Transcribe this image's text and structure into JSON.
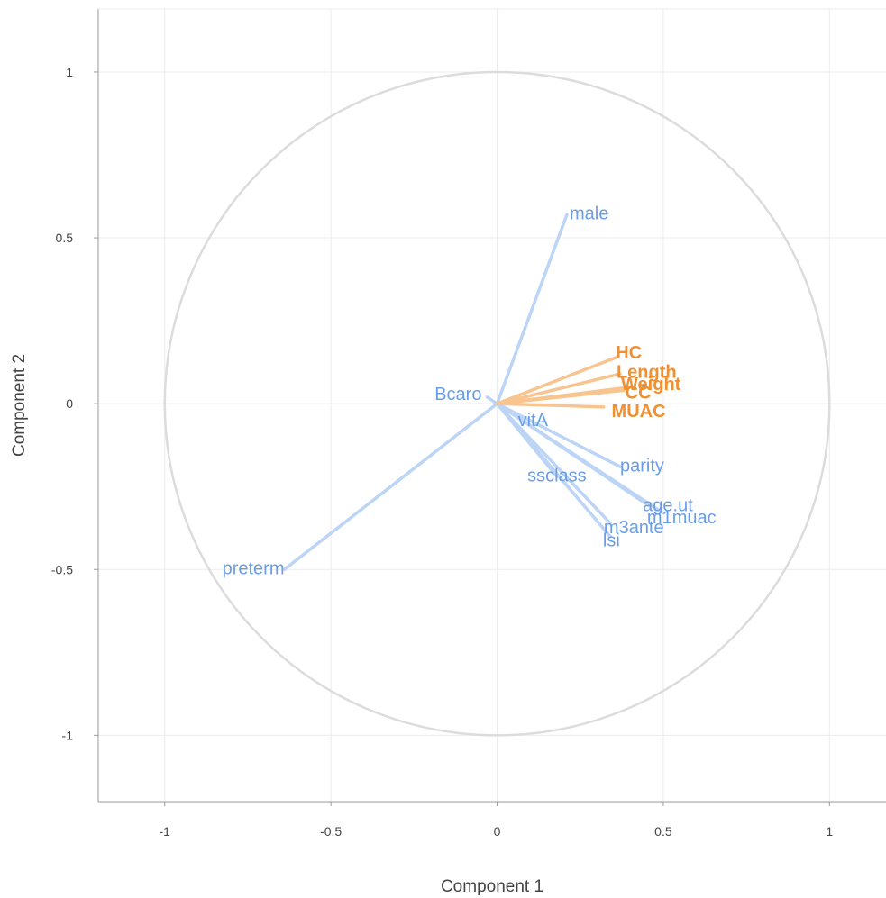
{
  "chart_data": {
    "type": "scatter",
    "subtype": "correlation-circle",
    "xlabel": "Component 1",
    "ylabel": "Component 2",
    "xlim": [
      -1.2,
      1.17
    ],
    "ylim": [
      -1.2,
      1.19
    ],
    "xticks": [
      -1,
      -0.5,
      0,
      0.5,
      1
    ],
    "xtick_labels": [
      "-1",
      "-0.5",
      "0",
      "0.5",
      "1"
    ],
    "yticks": [
      1,
      0.5,
      0,
      -0.5,
      -1
    ],
    "ytick_labels": [
      "1",
      "0.5",
      "0",
      "-0.5",
      "-1"
    ],
    "grid": true,
    "unit_circle": true,
    "colors": {
      "blue": "#6a9de8",
      "blue_line": "#bcd4f5",
      "orange": "#f28f2e",
      "orange_line": "#f8c48f",
      "grid": "#ececec",
      "circle": "#dcdcdc",
      "axis": "#9a9a9a"
    },
    "series": [
      {
        "group": "blue",
        "points": [
          {
            "label": "male",
            "x": 0.21,
            "y": 0.57
          },
          {
            "label": "Bcaro",
            "x": -0.03,
            "y": 0.02
          },
          {
            "label": "vitA",
            "x": 0.03,
            "y": -0.02
          },
          {
            "label": "parity",
            "x": 0.37,
            "y": -0.19
          },
          {
            "label": "ssclass",
            "x": 0.18,
            "y": -0.22
          },
          {
            "label": "age.ut",
            "x": 0.46,
            "y": -0.31
          },
          {
            "label": "m1muac",
            "x": 0.5,
            "y": -0.33
          },
          {
            "label": "m3ante",
            "x": 0.34,
            "y": -0.36
          },
          {
            "label": "lsi",
            "x": 0.34,
            "y": -0.4
          },
          {
            "label": "preterm",
            "x": -0.64,
            "y": -0.5
          }
        ]
      },
      {
        "group": "orange",
        "points": [
          {
            "label": "HC",
            "x": 0.36,
            "y": 0.14
          },
          {
            "label": "Length",
            "x": 0.37,
            "y": 0.09
          },
          {
            "label": "Weight",
            "x": 0.4,
            "y": 0.05
          },
          {
            "label": "CC",
            "x": 0.38,
            "y": 0.04
          },
          {
            "label": "MUAC",
            "x": 0.32,
            "y": -0.01
          }
        ]
      }
    ]
  }
}
